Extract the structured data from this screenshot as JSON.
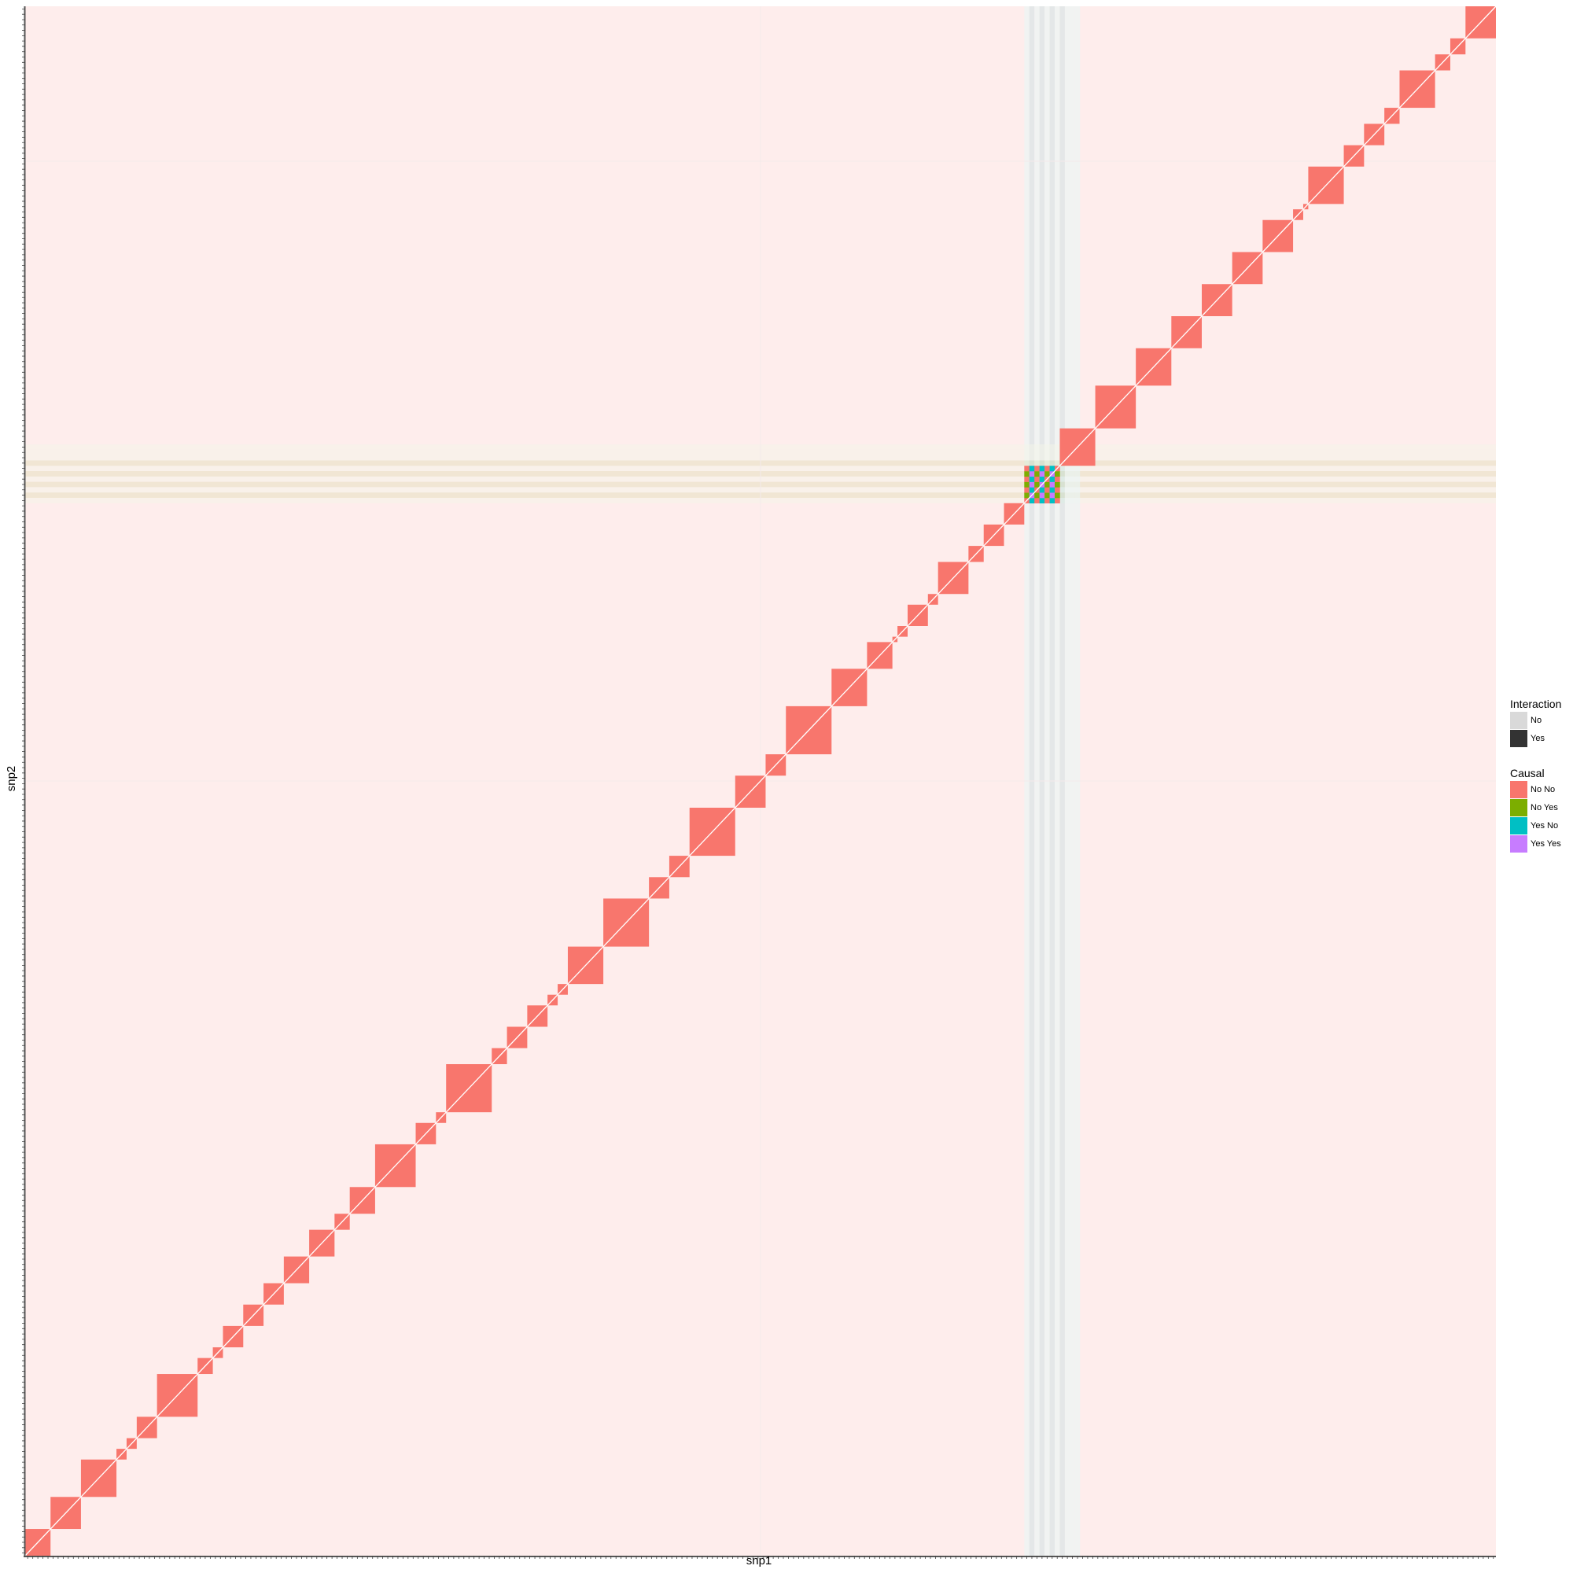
{
  "chart_data": {
    "type": "heatmap",
    "xlabel": "snp1",
    "ylabel": "snp2",
    "x_count": 290,
    "y_count": 290,
    "grid": true,
    "legend_placement": "right",
    "causal_colors": {
      "No No": "#F8766D",
      "No Yes": "#7CAE00",
      "Yes No": "#00BFC4",
      "Yes Yes": "#C77CFF"
    },
    "interaction_colors": {
      "No": "#D9D9D9",
      "Yes": "#333333"
    },
    "blocks": [
      {
        "start": 0,
        "size": 5
      },
      {
        "start": 5,
        "size": 6
      },
      {
        "start": 11,
        "size": 7
      },
      {
        "start": 18,
        "size": 2
      },
      {
        "start": 20,
        "size": 2
      },
      {
        "start": 22,
        "size": 4
      },
      {
        "start": 26,
        "size": 8
      },
      {
        "start": 34,
        "size": 3
      },
      {
        "start": 37,
        "size": 2
      },
      {
        "start": 39,
        "size": 4
      },
      {
        "start": 43,
        "size": 4
      },
      {
        "start": 47,
        "size": 4
      },
      {
        "start": 51,
        "size": 5
      },
      {
        "start": 56,
        "size": 5
      },
      {
        "start": 61,
        "size": 3
      },
      {
        "start": 64,
        "size": 5
      },
      {
        "start": 69,
        "size": 8
      },
      {
        "start": 77,
        "size": 4
      },
      {
        "start": 81,
        "size": 2
      },
      {
        "start": 83,
        "size": 9
      },
      {
        "start": 92,
        "size": 3
      },
      {
        "start": 95,
        "size": 4
      },
      {
        "start": 99,
        "size": 4
      },
      {
        "start": 103,
        "size": 2
      },
      {
        "start": 105,
        "size": 2
      },
      {
        "start": 107,
        "size": 7
      },
      {
        "start": 114,
        "size": 9
      },
      {
        "start": 123,
        "size": 4
      },
      {
        "start": 127,
        "size": 4
      },
      {
        "start": 131,
        "size": 9
      },
      {
        "start": 140,
        "size": 6
      },
      {
        "start": 146,
        "size": 4
      },
      {
        "start": 150,
        "size": 9
      },
      {
        "start": 159,
        "size": 7
      },
      {
        "start": 166,
        "size": 5
      },
      {
        "start": 171,
        "size": 1
      },
      {
        "start": 172,
        "size": 2
      },
      {
        "start": 174,
        "size": 4
      },
      {
        "start": 178,
        "size": 2
      },
      {
        "start": 180,
        "size": 6
      },
      {
        "start": 186,
        "size": 3
      },
      {
        "start": 189,
        "size": 4
      },
      {
        "start": 193,
        "size": 4
      },
      {
        "start": 197,
        "size": 7,
        "causal_block": true
      },
      {
        "start": 204,
        "size": 7
      },
      {
        "start": 211,
        "size": 8
      },
      {
        "start": 219,
        "size": 7
      },
      {
        "start": 226,
        "size": 6
      },
      {
        "start": 232,
        "size": 6
      },
      {
        "start": 238,
        "size": 6
      },
      {
        "start": 244,
        "size": 6
      },
      {
        "start": 250,
        "size": 2
      },
      {
        "start": 252,
        "size": 1
      },
      {
        "start": 253,
        "size": 7
      },
      {
        "start": 260,
        "size": 4
      },
      {
        "start": 264,
        "size": 4
      },
      {
        "start": 268,
        "size": 3
      },
      {
        "start": 271,
        "size": 7
      },
      {
        "start": 278,
        "size": 3
      },
      {
        "start": 281,
        "size": 3
      },
      {
        "start": 284,
        "size": 6
      }
    ],
    "causal_snps": [
      198,
      200,
      202,
      204
    ]
  },
  "legend": {
    "interaction": {
      "title": "Interaction",
      "items": [
        {
          "label": "No",
          "color": "#D9D9D9"
        },
        {
          "label": "Yes",
          "color": "#333333"
        }
      ]
    },
    "causal": {
      "title": "Causal",
      "items": [
        {
          "label": "No No",
          "color": "#F8766D"
        },
        {
          "label": "No Yes",
          "color": "#7CAE00"
        },
        {
          "label": "Yes No",
          "color": "#00BFC4"
        },
        {
          "label": "Yes Yes",
          "color": "#C77CFF"
        }
      ]
    }
  }
}
